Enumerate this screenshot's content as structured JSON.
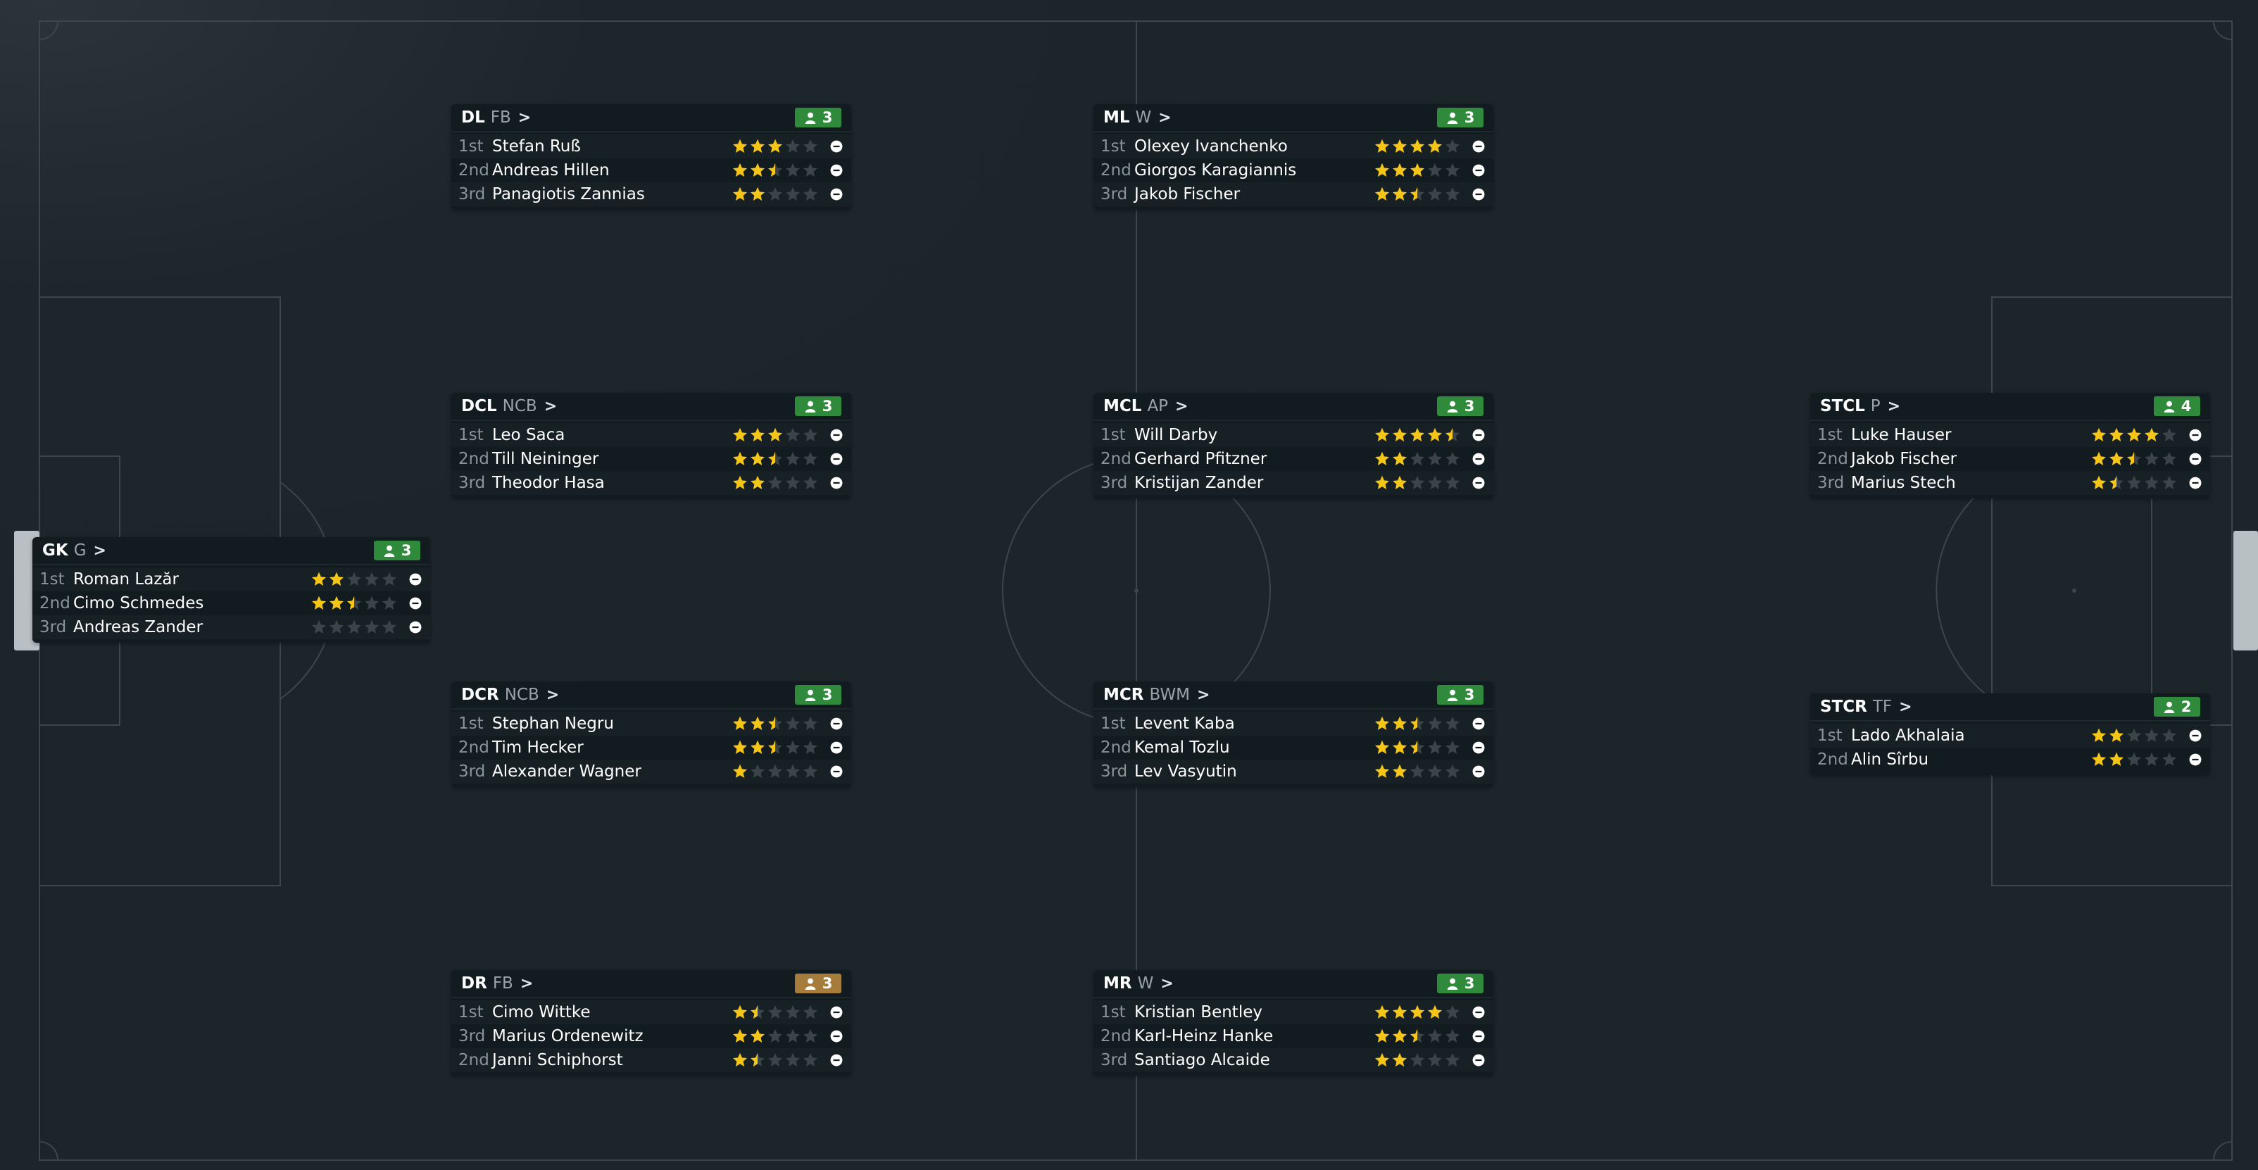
{
  "colors": {
    "star_on": "#f5c518",
    "star_off": "#3a4549",
    "badge_green": "#2f8a3b",
    "badge_amber": "#a67c3c"
  },
  "positions": [
    {
      "id": "dl",
      "pos": "DL",
      "role": "FB",
      "count": "3",
      "badge": "green",
      "players": [
        {
          "rank": "1st",
          "name": "Stefan Ruß",
          "rating": 3
        },
        {
          "rank": "2nd",
          "name": "Andreas Hillen",
          "rating": 2.5
        },
        {
          "rank": "3rd",
          "name": "Panagiotis Zannias",
          "rating": 2
        }
      ]
    },
    {
      "id": "ml",
      "pos": "ML",
      "role": "W",
      "count": "3",
      "badge": "green",
      "players": [
        {
          "rank": "1st",
          "name": "Olexey Ivanchenko",
          "rating": 4
        },
        {
          "rank": "2nd",
          "name": "Giorgos Karagiannis",
          "rating": 3
        },
        {
          "rank": "3rd",
          "name": "Jakob Fischer",
          "rating": 2.5
        }
      ]
    },
    {
      "id": "dcl",
      "pos": "DCL",
      "role": "NCB",
      "count": "3",
      "badge": "green",
      "players": [
        {
          "rank": "1st",
          "name": "Leo Saca",
          "rating": 3
        },
        {
          "rank": "2nd",
          "name": "Till Neininger",
          "rating": 2.5
        },
        {
          "rank": "3rd",
          "name": "Theodor Hasa",
          "rating": 2
        }
      ]
    },
    {
      "id": "mcl",
      "pos": "MCL",
      "role": "AP",
      "count": "3",
      "badge": "green",
      "players": [
        {
          "rank": "1st",
          "name": "Will Darby",
          "rating": 4.5
        },
        {
          "rank": "2nd",
          "name": "Gerhard Pfitzner",
          "rating": 2
        },
        {
          "rank": "3rd",
          "name": "Kristijan Zander",
          "rating": 2
        }
      ]
    },
    {
      "id": "stcl",
      "pos": "STCL",
      "role": "P",
      "count": "4",
      "badge": "green",
      "players": [
        {
          "rank": "1st",
          "name": "Luke Hauser",
          "rating": 4
        },
        {
          "rank": "2nd",
          "name": "Jakob Fischer",
          "rating": 2.5
        },
        {
          "rank": "3rd",
          "name": "Marius Stech",
          "rating": 1.5
        }
      ]
    },
    {
      "id": "gk",
      "pos": "GK",
      "role": "G",
      "count": "3",
      "badge": "green",
      "players": [
        {
          "rank": "1st",
          "name": "Roman Lazăr",
          "rating": 2
        },
        {
          "rank": "2nd",
          "name": "Cimo Schmedes",
          "rating": 2.5
        },
        {
          "rank": "3rd",
          "name": "Andreas Zander",
          "rating": 0
        }
      ]
    },
    {
      "id": "dcr",
      "pos": "DCR",
      "role": "NCB",
      "count": "3",
      "badge": "green",
      "players": [
        {
          "rank": "1st",
          "name": "Stephan Negru",
          "rating": 2.5
        },
        {
          "rank": "2nd",
          "name": "Tim Hecker",
          "rating": 2.5
        },
        {
          "rank": "3rd",
          "name": "Alexander Wagner",
          "rating": 1
        }
      ]
    },
    {
      "id": "mcr",
      "pos": "MCR",
      "role": "BWM",
      "count": "3",
      "badge": "green",
      "players": [
        {
          "rank": "1st",
          "name": "Levent Kaba",
          "rating": 2.5
        },
        {
          "rank": "2nd",
          "name": "Kemal Tozlu",
          "rating": 2.5
        },
        {
          "rank": "3rd",
          "name": "Lev Vasyutin",
          "rating": 2
        }
      ]
    },
    {
      "id": "stcr",
      "pos": "STCR",
      "role": "TF",
      "count": "2",
      "badge": "green",
      "players": [
        {
          "rank": "1st",
          "name": "Lado Akhalaia",
          "rating": 2
        },
        {
          "rank": "2nd",
          "name": "Alin Sîrbu",
          "rating": 2
        }
      ]
    },
    {
      "id": "dr",
      "pos": "DR",
      "role": "FB",
      "count": "3",
      "badge": "amber",
      "players": [
        {
          "rank": "1st",
          "name": "Cimo Wittke",
          "rating": 1.5
        },
        {
          "rank": "3rd",
          "name": "Marius Ordenewitz",
          "rating": 2
        },
        {
          "rank": "2nd",
          "name": "Janni Schiphorst",
          "rating": 1.5
        }
      ]
    },
    {
      "id": "mr",
      "pos": "MR",
      "role": "W",
      "count": "3",
      "badge": "green",
      "players": [
        {
          "rank": "1st",
          "name": "Kristian Bentley",
          "rating": 4
        },
        {
          "rank": "2nd",
          "name": "Karl-Heinz Hanke",
          "rating": 2.5
        },
        {
          "rank": "3rd",
          "name": "Santiago Alcaide",
          "rating": 2
        }
      ]
    }
  ]
}
